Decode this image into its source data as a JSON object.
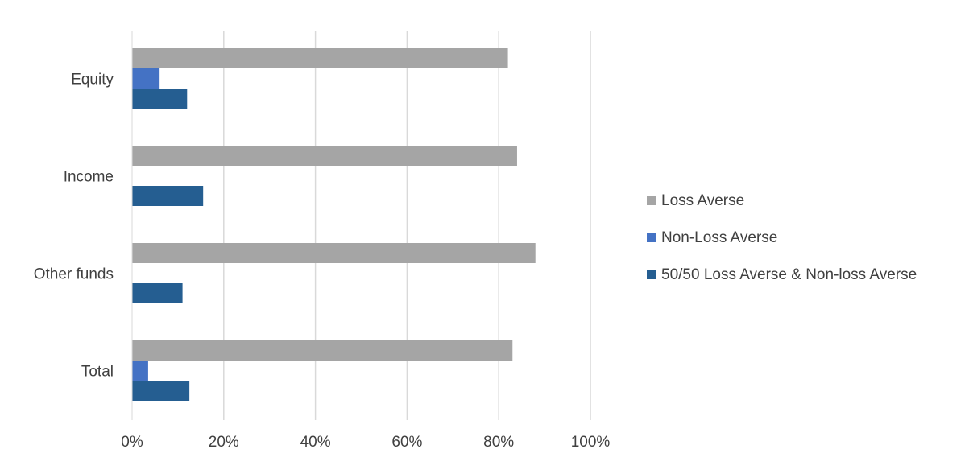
{
  "chart_data": {
    "type": "bar",
    "orientation": "horizontal",
    "categories": [
      "Equity",
      "Income",
      "Other funds",
      "Total"
    ],
    "series": [
      {
        "name": "Loss Averse",
        "color": "#a5a5a5",
        "values": [
          82,
          84,
          88,
          83
        ]
      },
      {
        "name": "Non-Loss Averse",
        "color": "#4472c4",
        "values": [
          6,
          0,
          0,
          3.5
        ]
      },
      {
        "name": "50/50 Loss Averse & Non-loss Averse",
        "color": "#255e91",
        "values": [
          12,
          15.5,
          11,
          12.5
        ]
      }
    ],
    "xlim": [
      0,
      100
    ],
    "x_ticks": [
      "0%",
      "20%",
      "40%",
      "60%",
      "80%",
      "100%"
    ],
    "grid": true,
    "legend_position": "right"
  }
}
